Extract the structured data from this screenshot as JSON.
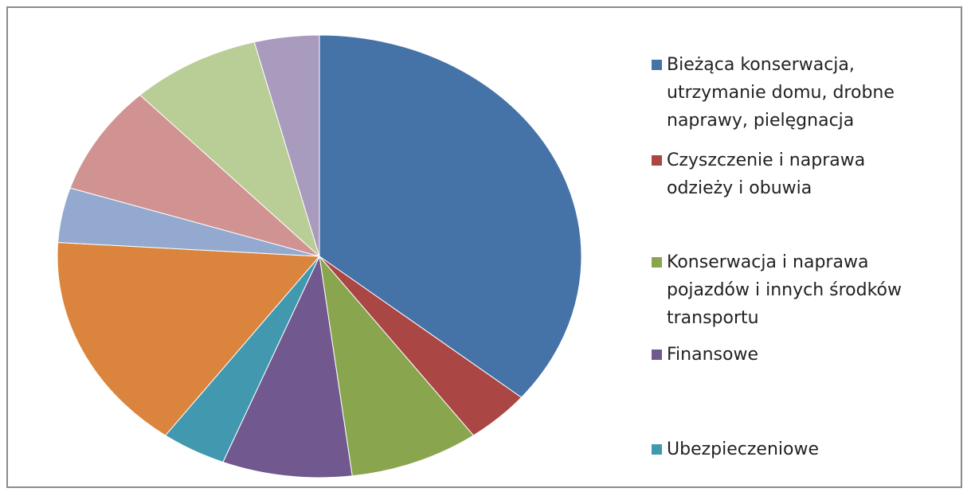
{
  "chart_data": {
    "type": "pie",
    "categories": [
      "Bieżąca konserwacja, utrzymanie domu, drobne naprawy, pielęgnacja",
      "Czyszczenie i naprawa odzieży i obuwia",
      "Konserwacja i naprawa pojazdów i innych środków transportu",
      "Finansowe",
      "Ubezpieczeniowe",
      null,
      null,
      null,
      null,
      null
    ],
    "values": [
      36,
      4,
      8,
      8,
      4,
      16,
      4,
      8,
      8,
      4
    ],
    "colors": [
      "#4572a7",
      "#aa4643",
      "#89a54e",
      "#71588f",
      "#4198af",
      "#db843d",
      "#93a9cf",
      "#d19392",
      "#b9cd96",
      "#a99bbd"
    ]
  }
}
